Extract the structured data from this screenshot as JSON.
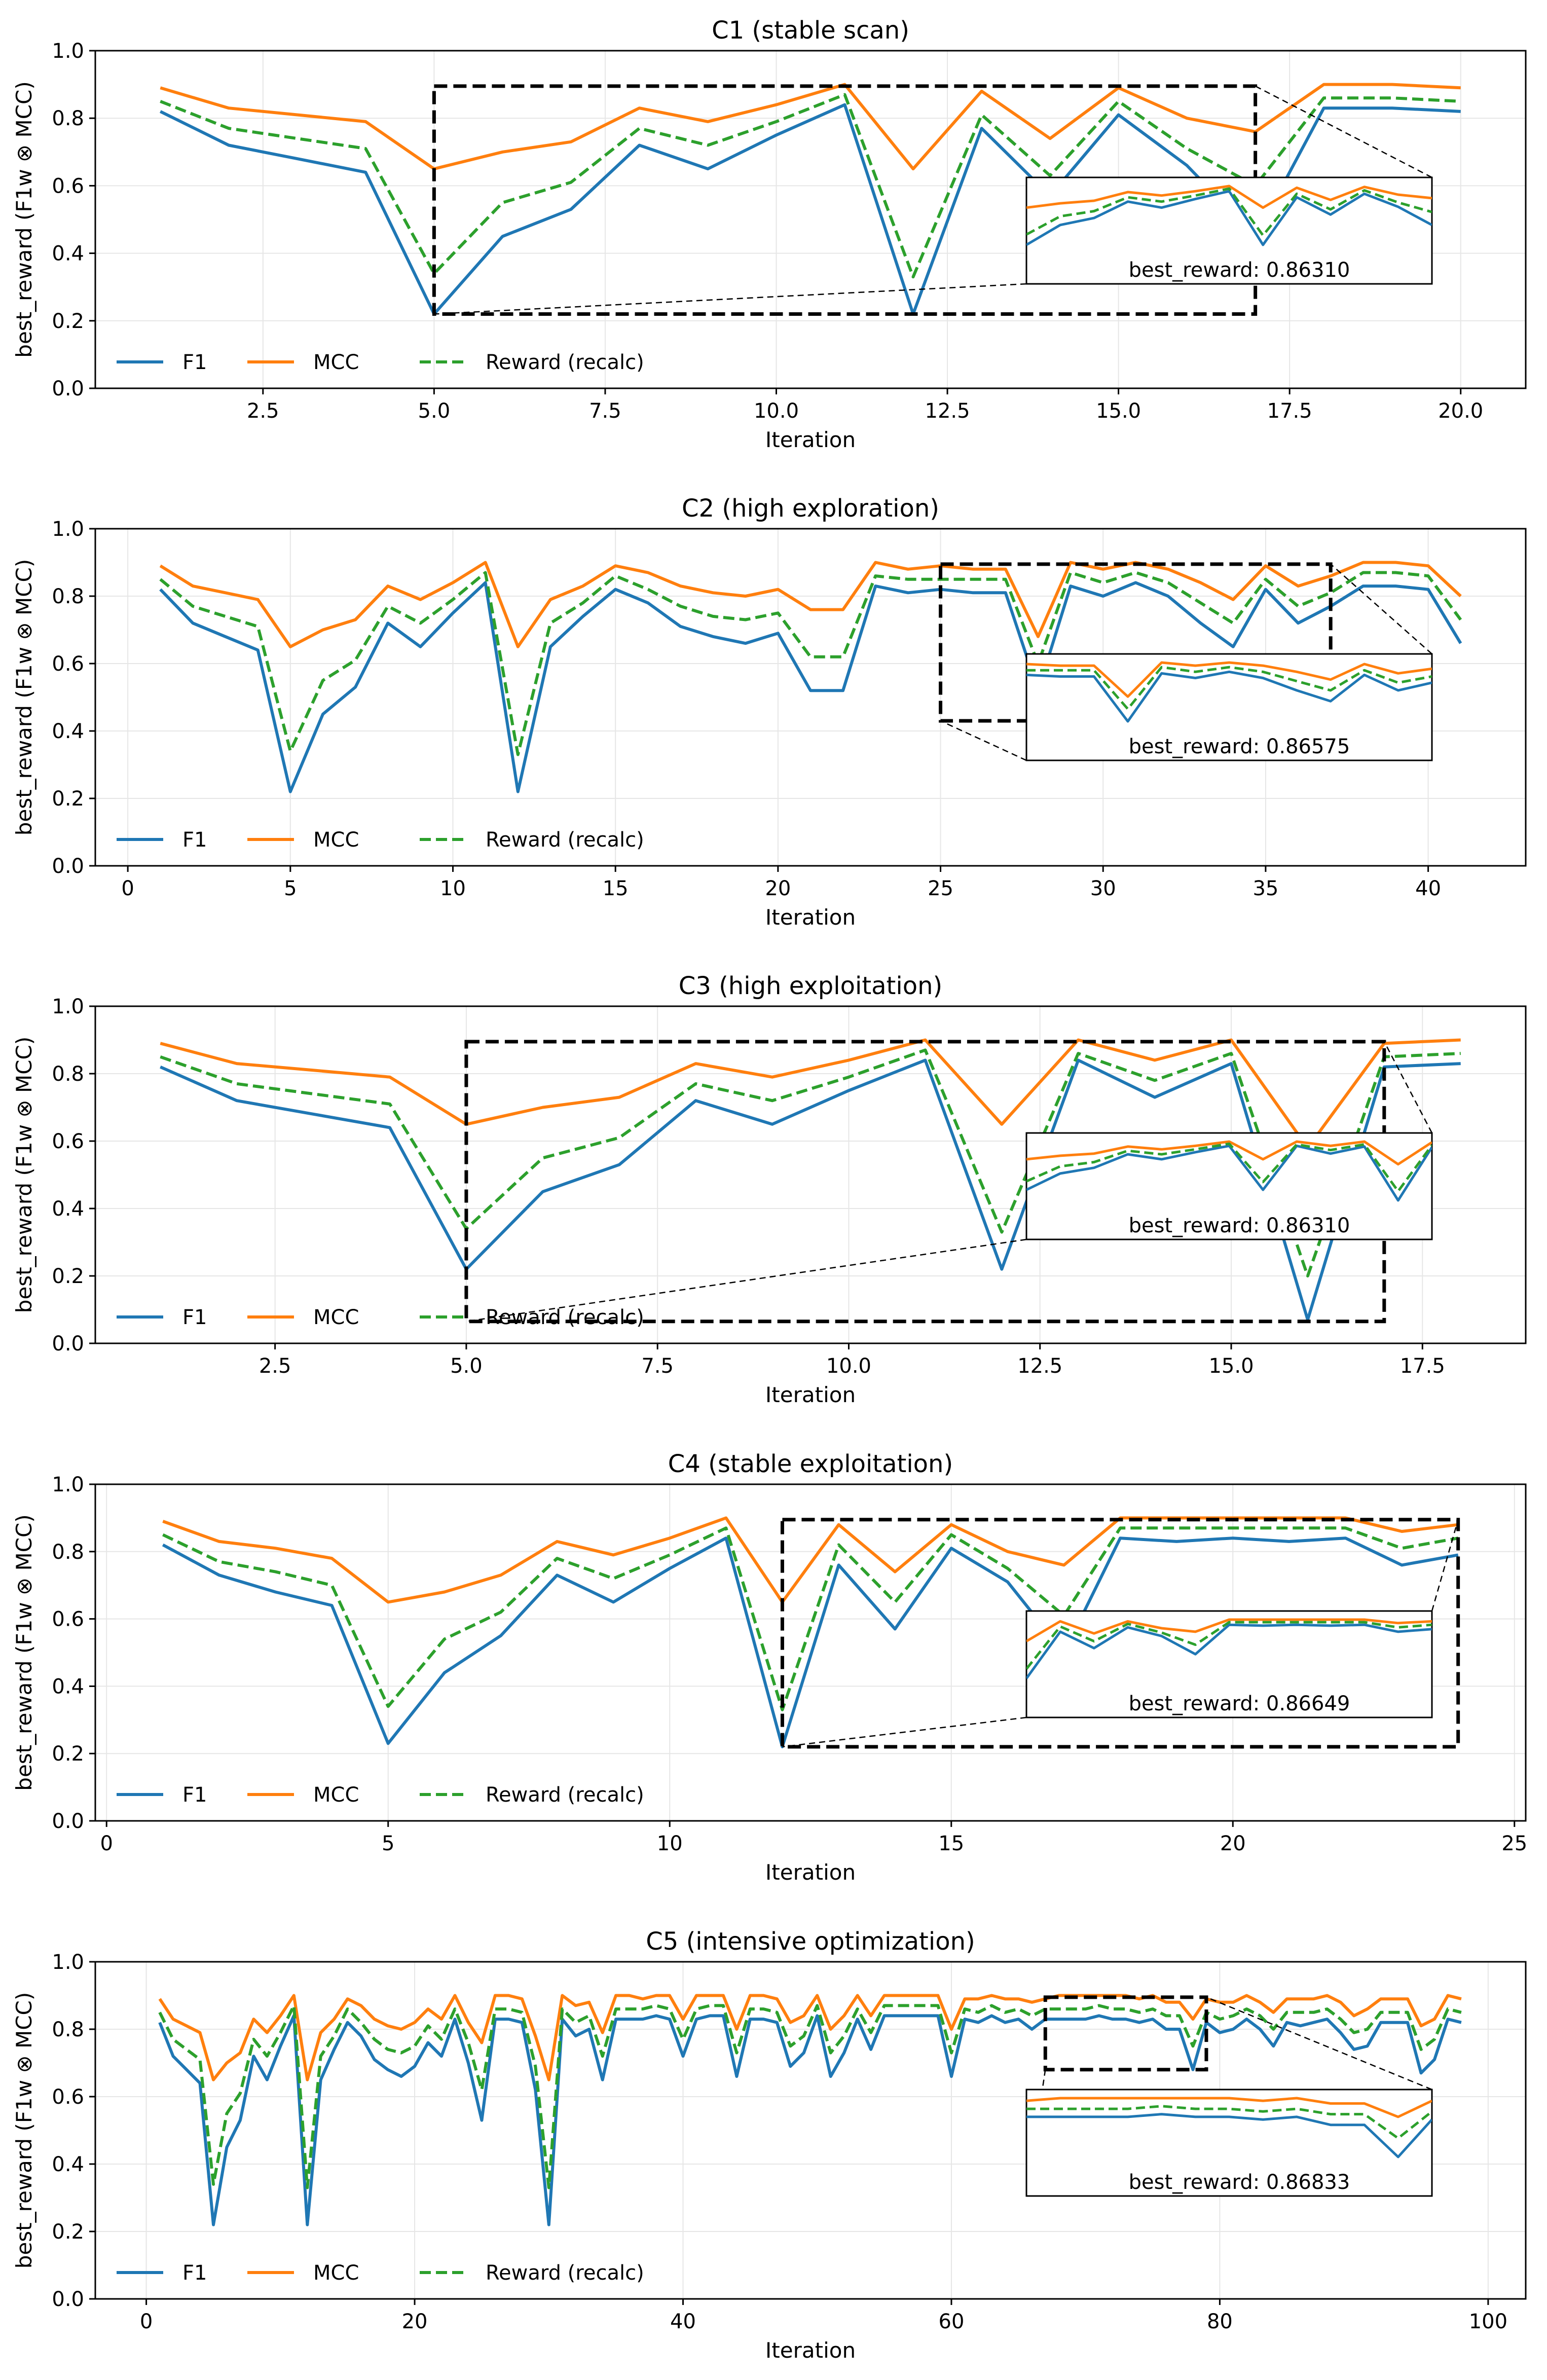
{
  "colors": {
    "f1": "#1f77b4",
    "mcc": "#ff7f0e",
    "reward": "#2ca02c",
    "frame": "#000000",
    "grid": "#e6e6e6"
  },
  "legend": {
    "f1": "F1",
    "mcc": "MCC",
    "reward": "Reward (recalc)"
  },
  "chart_data": [
    {
      "type": "line",
      "title": "C1 (stable scan)",
      "xlabel": "Iteration",
      "ylabel": "best_reward (F1w ⊗ MCC)",
      "xlim": [
        0.05,
        20.95
      ],
      "ylim": [
        0.0,
        1.0
      ],
      "xticks": [
        2.5,
        5.0,
        7.5,
        10.0,
        12.5,
        15.0,
        17.5,
        20.0
      ],
      "xtick_labels": [
        "2.5",
        "5.0",
        "7.5",
        "10.0",
        "12.5",
        "15.0",
        "17.5",
        "20.0"
      ],
      "yticks": [
        0.0,
        0.2,
        0.4,
        0.6,
        0.8,
        1.0
      ],
      "ytick_labels": [
        "0.0",
        "0.2",
        "0.4",
        "0.6",
        "0.8",
        "1.0"
      ],
      "grid": true,
      "legend_position": "lower-left",
      "x": [
        1,
        2,
        3,
        4,
        5,
        6,
        7,
        8,
        9,
        10,
        11,
        12,
        13,
        14,
        15,
        16,
        17,
        18,
        19,
        20
      ],
      "series": [
        {
          "name": "F1",
          "values": [
            0.82,
            0.72,
            0.68,
            0.64,
            0.22,
            0.45,
            0.53,
            0.72,
            0.65,
            0.75,
            0.84,
            0.22,
            0.77,
            0.57,
            0.81,
            0.66,
            0.45,
            0.83,
            0.83,
            0.82
          ]
        },
        {
          "name": "MCC",
          "values": [
            0.89,
            0.83,
            0.81,
            0.79,
            0.65,
            0.7,
            0.73,
            0.83,
            0.79,
            0.84,
            0.9,
            0.65,
            0.88,
            0.74,
            0.89,
            0.8,
            0.76,
            0.9,
            0.9,
            0.89
          ]
        },
        {
          "name": "Reward (recalc)",
          "values": [
            0.85,
            0.77,
            0.74,
            0.71,
            0.34,
            0.55,
            0.61,
            0.77,
            0.72,
            0.79,
            0.87,
            0.33,
            0.81,
            0.63,
            0.85,
            0.71,
            0.6,
            0.86,
            0.86,
            0.85
          ]
        }
      ],
      "zoom": {
        "x_range": [
          5,
          17
        ],
        "y_range": [
          0.22,
          0.895
        ],
        "label": "best_reward: 0.86310"
      }
    },
    {
      "type": "line",
      "title": "C2 (high exploration)",
      "xlabel": "Iteration",
      "ylabel": "best_reward (F1w ⊗ MCC)",
      "xlim": [
        -1.0,
        43.0
      ],
      "ylim": [
        0.0,
        1.0
      ],
      "xticks": [
        0,
        5,
        10,
        15,
        20,
        25,
        30,
        35,
        40
      ],
      "xtick_labels": [
        "0",
        "5",
        "10",
        "15",
        "20",
        "25",
        "30",
        "35",
        "40"
      ],
      "yticks": [
        0.0,
        0.2,
        0.4,
        0.6,
        0.8,
        1.0
      ],
      "ytick_labels": [
        "0.0",
        "0.2",
        "0.4",
        "0.6",
        "0.8",
        "1.0"
      ],
      "grid": true,
      "legend_position": "lower-left",
      "x": [
        1,
        2,
        3,
        4,
        5,
        6,
        7,
        8,
        9,
        10,
        11,
        12,
        13,
        14,
        15,
        16,
        17,
        18,
        19,
        20,
        21,
        22,
        23,
        24,
        25,
        26,
        27,
        28,
        29,
        30,
        31,
        32,
        33,
        34,
        35,
        36,
        37,
        38,
        39,
        40,
        41
      ],
      "series": [
        {
          "name": "F1",
          "values": [
            0.82,
            0.72,
            0.68,
            0.64,
            0.22,
            0.45,
            0.53,
            0.72,
            0.65,
            0.75,
            0.84,
            0.22,
            0.65,
            0.74,
            0.82,
            0.78,
            0.71,
            0.68,
            0.66,
            0.69,
            0.52,
            0.52,
            0.83,
            0.81,
            0.82,
            0.81,
            0.81,
            0.52,
            0.83,
            0.8,
            0.84,
            0.8,
            0.72,
            0.65,
            0.82,
            0.72,
            0.77,
            0.83,
            0.83,
            0.82,
            0.66
          ]
        },
        {
          "name": "MCC",
          "values": [
            0.89,
            0.83,
            0.81,
            0.79,
            0.65,
            0.7,
            0.73,
            0.83,
            0.79,
            0.84,
            0.9,
            0.65,
            0.79,
            0.83,
            0.89,
            0.87,
            0.83,
            0.81,
            0.8,
            0.82,
            0.76,
            0.76,
            0.9,
            0.88,
            0.89,
            0.88,
            0.88,
            0.68,
            0.9,
            0.88,
            0.9,
            0.88,
            0.84,
            0.79,
            0.89,
            0.83,
            0.86,
            0.9,
            0.9,
            0.89,
            0.8
          ]
        },
        {
          "name": "Reward (recalc)",
          "values": [
            0.85,
            0.77,
            0.74,
            0.71,
            0.34,
            0.55,
            0.61,
            0.77,
            0.72,
            0.79,
            0.87,
            0.33,
            0.72,
            0.78,
            0.86,
            0.82,
            0.77,
            0.74,
            0.73,
            0.75,
            0.62,
            0.62,
            0.86,
            0.85,
            0.85,
            0.85,
            0.85,
            0.6,
            0.87,
            0.84,
            0.87,
            0.84,
            0.78,
            0.72,
            0.85,
            0.77,
            0.81,
            0.87,
            0.87,
            0.86,
            0.73
          ]
        }
      ],
      "zoom": {
        "x_range": [
          25,
          37
        ],
        "y_range": [
          0.43,
          0.895
        ],
        "label": "best_reward: 0.86575"
      }
    },
    {
      "type": "line",
      "title": "C3 (high exploitation)",
      "xlabel": "Iteration",
      "ylabel": "best_reward (F1w ⊗ MCC)",
      "xlim": [
        0.15,
        18.85
      ],
      "ylim": [
        0.0,
        1.0
      ],
      "xticks": [
        2.5,
        5.0,
        7.5,
        10.0,
        12.5,
        15.0,
        17.5
      ],
      "xtick_labels": [
        "2.5",
        "5.0",
        "7.5",
        "10.0",
        "12.5",
        "15.0",
        "17.5"
      ],
      "yticks": [
        0.0,
        0.2,
        0.4,
        0.6,
        0.8,
        1.0
      ],
      "ytick_labels": [
        "0.0",
        "0.2",
        "0.4",
        "0.6",
        "0.8",
        "1.0"
      ],
      "grid": true,
      "legend_position": "lower-left",
      "x": [
        1,
        2,
        3,
        4,
        5,
        6,
        7,
        8,
        9,
        10,
        11,
        12,
        13,
        14,
        15,
        16,
        17,
        18
      ],
      "series": [
        {
          "name": "F1",
          "values": [
            0.82,
            0.72,
            0.68,
            0.64,
            0.22,
            0.45,
            0.53,
            0.72,
            0.65,
            0.75,
            0.84,
            0.22,
            0.84,
            0.73,
            0.83,
            0.07,
            0.82,
            0.83
          ]
        },
        {
          "name": "MCC",
          "values": [
            0.89,
            0.83,
            0.81,
            0.79,
            0.65,
            0.7,
            0.73,
            0.83,
            0.79,
            0.84,
            0.9,
            0.65,
            0.9,
            0.84,
            0.9,
            0.58,
            0.89,
            0.9
          ]
        },
        {
          "name": "Reward (recalc)",
          "values": [
            0.85,
            0.77,
            0.74,
            0.71,
            0.34,
            0.55,
            0.61,
            0.77,
            0.72,
            0.79,
            0.87,
            0.33,
            0.86,
            0.78,
            0.86,
            0.2,
            0.85,
            0.86
          ]
        }
      ],
      "zoom": {
        "x_range": [
          5,
          17
        ],
        "y_range": [
          0.065,
          0.895
        ],
        "label": "best_reward: 0.86310"
      }
    },
    {
      "type": "line",
      "title": "C4 (stable exploitation)",
      "xlabel": "Iteration",
      "ylabel": "best_reward (F1w ⊗ MCC)",
      "xlim": [
        -0.2,
        25.2
      ],
      "ylim": [
        0.0,
        1.0
      ],
      "xticks": [
        0,
        5,
        10,
        15,
        20,
        25
      ],
      "xtick_labels": [
        "0",
        "5",
        "10",
        "15",
        "20",
        "25"
      ],
      "yticks": [
        0.0,
        0.2,
        0.4,
        0.6,
        0.8,
        1.0
      ],
      "ytick_labels": [
        "0.0",
        "0.2",
        "0.4",
        "0.6",
        "0.8",
        "1.0"
      ],
      "grid": true,
      "legend_position": "lower-left",
      "x": [
        1,
        2,
        3,
        4,
        5,
        6,
        7,
        8,
        9,
        10,
        11,
        12,
        13,
        14,
        15,
        16,
        17,
        18,
        19,
        20,
        21,
        22,
        23,
        24
      ],
      "series": [
        {
          "name": "F1",
          "values": [
            0.82,
            0.73,
            0.68,
            0.64,
            0.23,
            0.44,
            0.55,
            0.73,
            0.65,
            0.75,
            0.84,
            0.22,
            0.76,
            0.57,
            0.81,
            0.71,
            0.5,
            0.84,
            0.83,
            0.84,
            0.83,
            0.84,
            0.76,
            0.79
          ]
        },
        {
          "name": "MCC",
          "values": [
            0.89,
            0.83,
            0.81,
            0.78,
            0.65,
            0.68,
            0.73,
            0.83,
            0.79,
            0.84,
            0.9,
            0.65,
            0.88,
            0.74,
            0.88,
            0.8,
            0.76,
            0.9,
            0.9,
            0.9,
            0.9,
            0.9,
            0.86,
            0.88
          ]
        },
        {
          "name": "Reward (recalc)",
          "values": [
            0.85,
            0.77,
            0.74,
            0.7,
            0.34,
            0.54,
            0.62,
            0.78,
            0.72,
            0.79,
            0.87,
            0.33,
            0.82,
            0.65,
            0.85,
            0.75,
            0.61,
            0.87,
            0.87,
            0.87,
            0.87,
            0.87,
            0.81,
            0.84
          ]
        }
      ],
      "zoom": {
        "x_range": [
          12,
          24
        ],
        "y_range": [
          0.22,
          0.895
        ],
        "label": "best_reward: 0.86649"
      }
    },
    {
      "type": "line",
      "title": "C5 (intensive optimization)",
      "xlabel": "Iteration",
      "ylabel": "best_reward (F1w ⊗ MCC)",
      "xlim": [
        -3.8,
        102.8
      ],
      "ylim": [
        0.0,
        1.0
      ],
      "xticks": [
        0,
        20,
        40,
        60,
        80,
        100
      ],
      "xtick_labels": [
        "0",
        "20",
        "40",
        "60",
        "80",
        "100"
      ],
      "yticks": [
        0.0,
        0.2,
        0.4,
        0.6,
        0.8,
        1.0
      ],
      "ytick_labels": [
        "0.0",
        "0.2",
        "0.4",
        "0.6",
        "0.8",
        "1.0"
      ],
      "grid": true,
      "legend_position": "lower-left",
      "x": [
        1,
        2,
        3,
        4,
        5,
        6,
        7,
        8,
        9,
        10,
        11,
        12,
        13,
        14,
        15,
        16,
        17,
        18,
        19,
        20,
        21,
        22,
        23,
        24,
        25,
        26,
        27,
        28,
        29,
        30,
        31,
        32,
        33,
        34,
        35,
        36,
        37,
        38,
        39,
        40,
        41,
        42,
        43,
        44,
        45,
        46,
        47,
        48,
        49,
        50,
        51,
        52,
        53,
        54,
        55,
        56,
        57,
        58,
        59,
        60,
        61,
        62,
        63,
        64,
        65,
        66,
        67,
        68,
        69,
        70,
        71,
        72,
        73,
        74,
        75,
        76,
        77,
        78,
        79,
        80,
        81,
        82,
        83,
        84,
        85,
        86,
        87,
        88,
        89,
        90,
        91,
        92,
        93,
        94,
        95,
        96,
        97,
        98
      ],
      "series": [
        {
          "name": "F1",
          "values": [
            0.82,
            0.72,
            0.68,
            0.64,
            0.22,
            0.45,
            0.53,
            0.72,
            0.65,
            0.75,
            0.84,
            0.22,
            0.65,
            0.74,
            0.82,
            0.78,
            0.71,
            0.68,
            0.66,
            0.69,
            0.76,
            0.72,
            0.83,
            0.7,
            0.53,
            0.83,
            0.83,
            0.82,
            0.62,
            0.22,
            0.83,
            0.78,
            0.8,
            0.65,
            0.83,
            0.83,
            0.83,
            0.84,
            0.83,
            0.72,
            0.83,
            0.84,
            0.84,
            0.66,
            0.83,
            0.83,
            0.82,
            0.69,
            0.73,
            0.84,
            0.66,
            0.73,
            0.83,
            0.74,
            0.84,
            0.84,
            0.84,
            0.84,
            0.84,
            0.66,
            0.83,
            0.82,
            0.84,
            0.82,
            0.83,
            0.8,
            0.83,
            0.83,
            0.83,
            0.83,
            0.84,
            0.83,
            0.83,
            0.82,
            0.83,
            0.8,
            0.8,
            0.68,
            0.82,
            0.79,
            0.8,
            0.83,
            0.8,
            0.75,
            0.82,
            0.81,
            0.82,
            0.83,
            0.79,
            0.74,
            0.75,
            0.82,
            0.82,
            0.82,
            0.67,
            0.71,
            0.83,
            0.82
          ]
        },
        {
          "name": "MCC",
          "values": [
            0.89,
            0.83,
            0.81,
            0.79,
            0.65,
            0.7,
            0.73,
            0.83,
            0.79,
            0.84,
            0.9,
            0.65,
            0.79,
            0.83,
            0.89,
            0.87,
            0.83,
            0.81,
            0.8,
            0.82,
            0.86,
            0.83,
            0.9,
            0.82,
            0.76,
            0.9,
            0.9,
            0.89,
            0.78,
            0.65,
            0.9,
            0.87,
            0.88,
            0.79,
            0.9,
            0.9,
            0.89,
            0.9,
            0.9,
            0.83,
            0.9,
            0.9,
            0.9,
            0.8,
            0.9,
            0.9,
            0.89,
            0.82,
            0.84,
            0.9,
            0.8,
            0.84,
            0.9,
            0.84,
            0.9,
            0.9,
            0.9,
            0.9,
            0.9,
            0.8,
            0.89,
            0.89,
            0.9,
            0.89,
            0.89,
            0.88,
            0.89,
            0.9,
            0.9,
            0.9,
            0.9,
            0.9,
            0.9,
            0.89,
            0.9,
            0.88,
            0.88,
            0.83,
            0.89,
            0.88,
            0.88,
            0.9,
            0.88,
            0.85,
            0.89,
            0.89,
            0.89,
            0.9,
            0.88,
            0.84,
            0.86,
            0.89,
            0.89,
            0.89,
            0.81,
            0.83,
            0.9,
            0.89
          ]
        },
        {
          "name": "Reward (recalc)",
          "values": [
            0.85,
            0.77,
            0.74,
            0.71,
            0.34,
            0.55,
            0.61,
            0.77,
            0.72,
            0.79,
            0.87,
            0.33,
            0.72,
            0.78,
            0.86,
            0.82,
            0.77,
            0.74,
            0.73,
            0.75,
            0.81,
            0.77,
            0.86,
            0.76,
            0.62,
            0.86,
            0.86,
            0.85,
            0.69,
            0.33,
            0.86,
            0.82,
            0.84,
            0.72,
            0.86,
            0.86,
            0.86,
            0.87,
            0.86,
            0.77,
            0.86,
            0.87,
            0.87,
            0.73,
            0.86,
            0.86,
            0.85,
            0.75,
            0.78,
            0.87,
            0.73,
            0.78,
            0.86,
            0.79,
            0.87,
            0.87,
            0.87,
            0.87,
            0.87,
            0.73,
            0.86,
            0.85,
            0.87,
            0.85,
            0.86,
            0.84,
            0.86,
            0.86,
            0.86,
            0.86,
            0.87,
            0.86,
            0.86,
            0.85,
            0.86,
            0.84,
            0.84,
            0.75,
            0.85,
            0.83,
            0.84,
            0.86,
            0.84,
            0.8,
            0.85,
            0.85,
            0.85,
            0.86,
            0.83,
            0.79,
            0.8,
            0.85,
            0.85,
            0.85,
            0.74,
            0.77,
            0.86,
            0.85
          ]
        }
      ],
      "zoom": {
        "x_range": [
          67,
          79
        ],
        "y_range": [
          0.68,
          0.895
        ],
        "label": "best_reward: 0.86833"
      }
    }
  ]
}
